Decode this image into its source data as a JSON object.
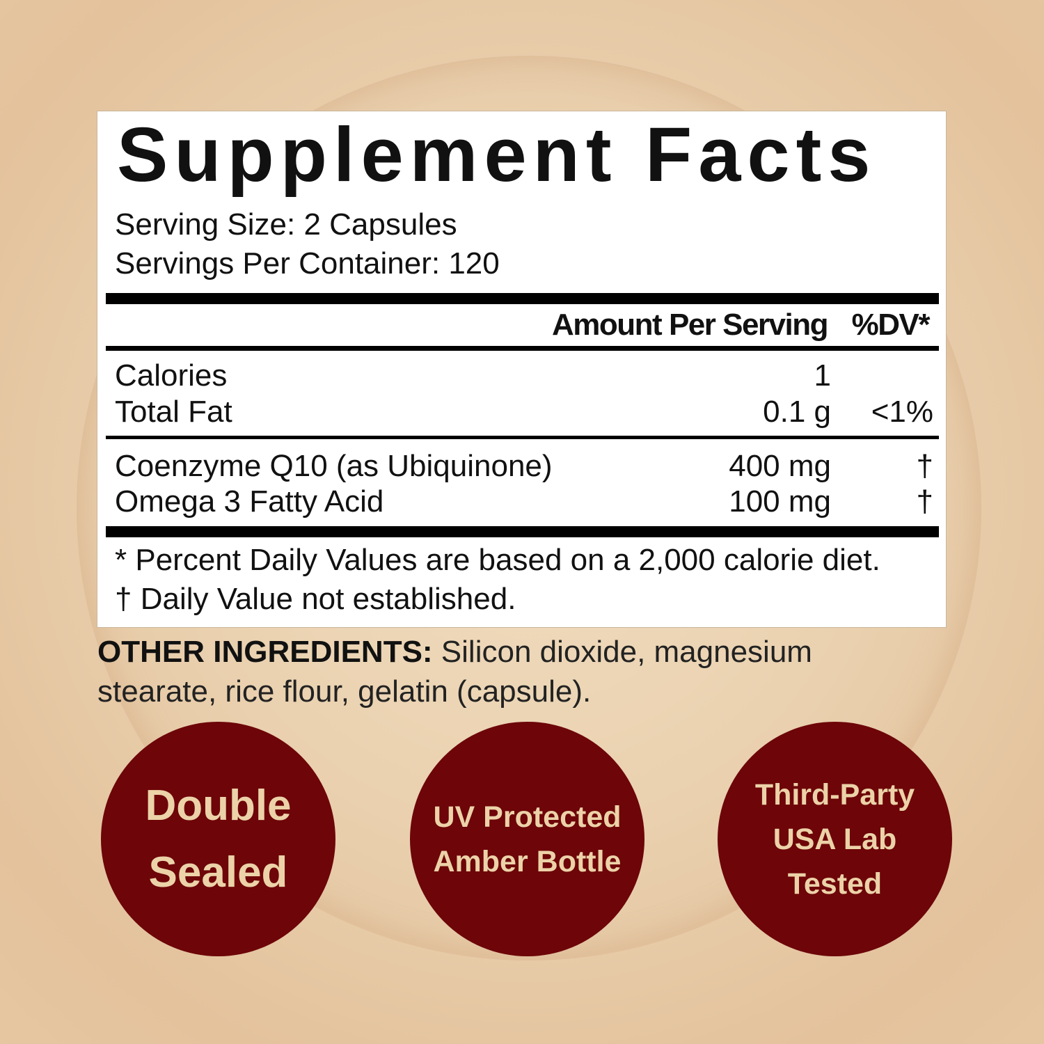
{
  "label": {
    "title": "Supplement Facts",
    "serving_size": "Serving Size: 2 Capsules",
    "servings_per_container": "Servings Per Container: 120",
    "header": {
      "amount": "Amount Per Serving",
      "dv": "%DV*"
    },
    "rows": [
      {
        "name": "Calories",
        "amount": "1",
        "dv": ""
      },
      {
        "name": "Total Fat",
        "amount": "0.1 g",
        "dv": "<1%"
      },
      {
        "name": "Coenzyme Q10 (as Ubiquinone)",
        "amount": "400 mg",
        "dv": "†"
      },
      {
        "name": "Omega 3 Fatty Acid",
        "amount": "100 mg",
        "dv": "†"
      }
    ],
    "footnotes": [
      "* Percent Daily Values are based on a 2,000 calorie diet.",
      "† Daily Value not established."
    ]
  },
  "other_ingredients": {
    "label": "OTHER INGREDIENTS:",
    "text": " Silicon dioxide, magnesium stearate, rice flour, gelatin (capsule)."
  },
  "badges": [
    {
      "lines": [
        "Double",
        "Sealed"
      ]
    },
    {
      "lines": [
        "UV Protected",
        "Amber Bottle"
      ]
    },
    {
      "lines": [
        "Third-Party",
        "USA Lab",
        "Tested"
      ]
    }
  ],
  "colors": {
    "badge": "#6d0509",
    "badge_text": "#ecd2a8",
    "background": "#ebd3b2"
  }
}
